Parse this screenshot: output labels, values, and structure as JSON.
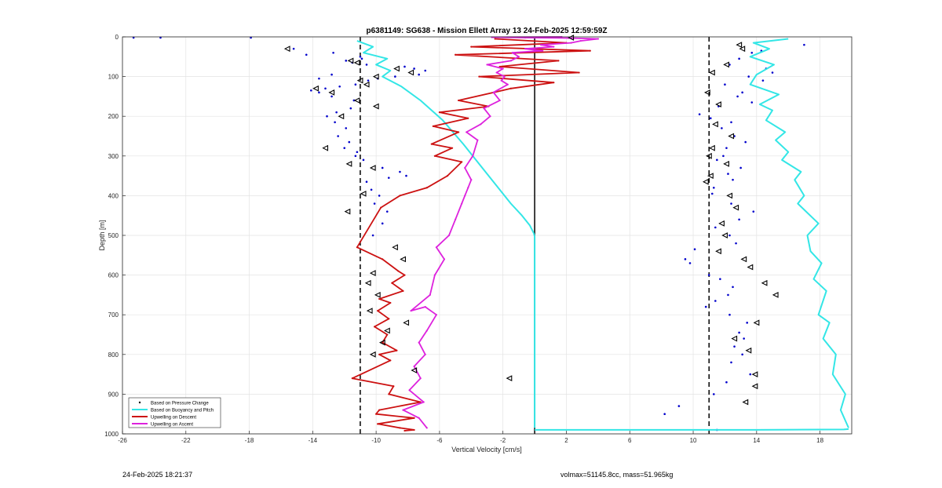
{
  "footer": {
    "timestamp": "24-Feb-2025 18:21:37",
    "volmax_mass": "volmax=51145.8cc, mass=51.965kg"
  },
  "chart_data": {
    "type": "line",
    "title": "p6381149: SG638 - Mission Ellett Array 13 24-Feb-2025 12:59:59Z",
    "xlabel": "Vertical Velocity [cm/s]",
    "ylabel": "Depth [m]",
    "xlim": [
      -26,
      20
    ],
    "ylim": [
      0,
      1000
    ],
    "y_reversed": true,
    "grid": true,
    "legend_position": "bottom-left",
    "x_ticks": [
      -26,
      -22,
      -18,
      -14,
      -10,
      -6,
      -2,
      2,
      6,
      10,
      14,
      18
    ],
    "y_ticks": [
      0,
      100,
      200,
      300,
      400,
      500,
      600,
      700,
      800,
      900,
      1000
    ],
    "reference_lines": [
      {
        "x": -11,
        "style": "dashed",
        "color": "#000000"
      },
      {
        "x": 11,
        "style": "dashed",
        "color": "#000000"
      },
      {
        "x": 0,
        "style": "solid",
        "color": "#000000",
        "y_range": [
          0,
          1000
        ]
      }
    ],
    "series": [
      {
        "name": "Based on Pressure Change",
        "color": "#0000cc",
        "style": "markers",
        "groups": [
          {
            "x": [
              -25.3,
              -23.6,
              -17.9,
              -15.2,
              -14.4,
              -12.7,
              -11.9,
              -11.5,
              -11.0,
              -10.6,
              -10.9,
              -12.8,
              -13.6,
              -10.5,
              -8.2,
              -7.6,
              -6.9,
              -7.3,
              -8.8,
              -9.9,
              -11.3,
              -12.3,
              -13.2,
              -14.1,
              -13.6,
              -12.8,
              -11.4,
              -11.6,
              -12.5,
              -13.1,
              -12.6,
              -11.9,
              -12.4,
              -11.7,
              -12.0,
              -11.2,
              -11.3,
              -10.8,
              -9.6,
              -8.5,
              -8.1,
              -9.2,
              -10.6,
              -10.3,
              -9.8,
              -10.1,
              -9.3,
              -9.6,
              -10.2
            ],
            "y": [
              2,
              2,
              2,
              30,
              45,
              40,
              60,
              65,
              50,
              70,
              55,
              95,
              105,
              110,
              75,
              80,
              85,
              95,
              100,
              105,
              120,
              125,
              130,
              135,
              140,
              150,
              160,
              180,
              190,
              200,
              215,
              230,
              250,
              265,
              280,
              290,
              300,
              310,
              330,
              340,
              350,
              355,
              365,
              385,
              400,
              420,
              440,
              470,
              500
            ]
          },
          {
            "x": [
              17.0,
              14.3,
              13.7,
              12.9,
              12.3,
              14.6,
              15.0,
              13.5,
              14.4,
              12.0,
              13.1,
              12.8,
              13.7,
              11.6,
              10.4,
              11.1,
              12.4,
              11.8,
              12.6,
              13.3,
              12.1,
              11.9,
              11.5,
              13.0,
              12.2,
              12.5,
              11.3,
              11.2,
              12.4,
              13.8,
              12.9,
              11.4,
              12.3,
              12.7,
              10.1,
              9.5,
              9.8,
              11.0,
              11.7,
              12.5,
              12.2,
              11.4,
              10.8,
              12.3,
              13.4,
              12.9,
              13.2,
              12.6,
              13.1,
              12.4,
              13.6,
              12.1,
              11.3,
              9.1,
              8.2,
              11.5
            ],
            "y": [
              20,
              35,
              40,
              55,
              70,
              80,
              90,
              100,
              110,
              120,
              140,
              150,
              165,
              175,
              195,
              205,
              215,
              230,
              250,
              265,
              280,
              300,
              310,
              330,
              345,
              360,
              380,
              395,
              420,
              440,
              460,
              480,
              500,
              520,
              535,
              560,
              570,
              600,
              610,
              630,
              650,
              665,
              680,
              700,
              720,
              745,
              760,
              780,
              800,
              820,
              850,
              870,
              900,
              930,
              950,
              990
            ]
          }
        ]
      },
      {
        "name": "Based on Buoyancy and Pitch",
        "color": "#33e6e6",
        "style": "line",
        "segments": [
          {
            "x": [
              -11.2,
              -10.2,
              -10.8,
              -9.3,
              -10.0,
              -9.1,
              -9.6,
              -8.4,
              -7.2,
              -5.8,
              -4.5,
              -3.3,
              -2.3,
              -1.5,
              -0.8,
              -0.3,
              -0.05,
              0,
              0
            ],
            "y": [
              10,
              25,
              40,
              55,
              70,
              85,
              100,
              125,
              160,
              210,
              270,
              330,
              380,
              420,
              450,
              475,
              495,
              503,
              985
            ]
          },
          {
            "x": [
              0,
              8,
              14,
              19.5,
              19.8
            ],
            "y": [
              990,
              990,
              990,
              989,
              988
            ]
          },
          {
            "x": [
              16.0,
              13.8,
              14.8,
              13.6,
              15.1,
              14.0,
              13.6,
              15.4,
              14.2,
              15.0,
              14.6,
              15.8,
              15.2,
              16.0,
              15.6,
              16.8,
              16.4,
              17.0,
              16.6,
              17.9,
              17.2,
              17.4,
              18.1,
              17.6,
              18.4,
              17.9,
              18.6,
              18.2,
              19.0,
              18.8,
              19.6,
              19.3,
              19.8
            ],
            "y": [
              5,
              15,
              30,
              50,
              70,
              95,
              120,
              145,
              170,
              185,
              210,
              240,
              260,
              290,
              310,
              340,
              360,
              400,
              420,
              470,
              500,
              540,
              570,
              610,
              640,
              700,
              720,
              760,
              800,
              850,
              900,
              940,
              985
            ]
          }
        ]
      },
      {
        "name": "Upwelling on Descent",
        "color": "#cc1111",
        "style": "line",
        "x": [
          -2.5,
          2.0,
          -4.0,
          3.5,
          -5.0,
          1.5,
          -2.2,
          2.8,
          -3.5,
          1.2,
          -1.5,
          -4.8,
          -2.9,
          -6.0,
          -4.2,
          -6.4,
          -4.8,
          -6.5,
          -5.2,
          -6.3,
          -4.6,
          -5.5,
          -6.8,
          -8.5,
          -9.7,
          -11.2,
          -9.6,
          -8.6,
          -8.2,
          -9.0,
          -8.3,
          -9.8,
          -9.1,
          -9.9,
          -9.2,
          -10.1,
          -9.3,
          -9.6,
          -8.7,
          -9.8,
          -9.1,
          -11.5,
          -8.9,
          -9.2,
          -7.2,
          -9.8,
          -10.0,
          -7.6,
          -9.9,
          -8.5,
          -7.6,
          -8.2
        ],
        "y": [
          5,
          15,
          25,
          35,
          45,
          60,
          75,
          90,
          100,
          115,
          130,
          160,
          175,
          190,
          205,
          225,
          240,
          270,
          280,
          300,
          315,
          350,
          380,
          400,
          430,
          530,
          560,
          590,
          600,
          620,
          640,
          660,
          670,
          690,
          710,
          730,
          750,
          770,
          790,
          800,
          815,
          860,
          880,
          900,
          920,
          940,
          950,
          960,
          975,
          985,
          990,
          992
        ]
      },
      {
        "name": "Upwelling on Ascent",
        "color": "#dd22dd",
        "style": "line",
        "x": [
          -6.8,
          -7.3,
          -8.3,
          -7.0,
          -7.9,
          -7.2,
          -7.6,
          -6.9,
          -7.3,
          -6.8,
          -6.2,
          -6.9,
          -7.8,
          -6.6,
          -6.3,
          -5.7,
          -6.2,
          -5.4,
          -5.0,
          -4.6,
          -4.4,
          -4.2,
          -4.0,
          -4.4,
          -3.9,
          -3.6,
          -4.3,
          -3.4,
          -2.8,
          -3.2,
          -2.2,
          -2.6,
          -1.7,
          -2.1,
          -1.9,
          -2.4,
          -2.0,
          -3.0,
          -1.5,
          -1.0,
          -1.4,
          0.5,
          -0.6,
          1.2,
          0.4,
          2.3,
          2.9,
          4.0,
          2.1,
          -0.6,
          -2.7,
          1.7
        ],
        "y": [
          985,
          960,
          940,
          920,
          890,
          860,
          830,
          800,
          770,
          740,
          700,
          680,
          690,
          650,
          600,
          560,
          530,
          500,
          460,
          420,
          400,
          380,
          360,
          330,
          300,
          260,
          240,
          220,
          200,
          180,
          160,
          140,
          120,
          110,
          100,
          90,
          80,
          70,
          60,
          50,
          40,
          35,
          30,
          25,
          20,
          15,
          10,
          5,
          3,
          2,
          1,
          0
        ]
      }
    ],
    "markers": {
      "name": "pitch triangles",
      "color": "#000000",
      "style": "open-triangle-left",
      "x": [
        -15.6,
        -11.6,
        -11.2,
        -10.0,
        -11.0,
        -10.6,
        -13.8,
        -12.8,
        -11.2,
        -10.0,
        -12.2,
        -8.7,
        -7.8,
        -13.2,
        -11.7,
        -10.2,
        -10.8,
        -11.8,
        -8.8,
        -8.3,
        -10.2,
        -10.5,
        -9.9,
        -10.4,
        -8.1,
        -9.3,
        -9.6,
        -10.2,
        -7.6,
        -1.6,
        2.3,
        12.9,
        13.1,
        12.1,
        11.2,
        10.9,
        11.6,
        11.4,
        12.4,
        11.2,
        11.0,
        12.1,
        11.1,
        10.8,
        12.3,
        12.7,
        11.8,
        12.0,
        11.6,
        13.2,
        13.6,
        14.5,
        15.2,
        14.0,
        12.6,
        13.5,
        13.9,
        13.9,
        13.3
      ],
      "y": [
        30,
        60,
        65,
        100,
        110,
        120,
        130,
        140,
        160,
        175,
        200,
        80,
        90,
        280,
        320,
        330,
        395,
        440,
        530,
        560,
        595,
        620,
        650,
        690,
        720,
        740,
        770,
        800,
        840,
        860,
        2,
        20,
        30,
        70,
        90,
        140,
        170,
        220,
        250,
        280,
        300,
        320,
        350,
        365,
        400,
        430,
        470,
        500,
        540,
        560,
        580,
        620,
        650,
        720,
        760,
        790,
        850,
        880,
        920
      ]
    }
  }
}
